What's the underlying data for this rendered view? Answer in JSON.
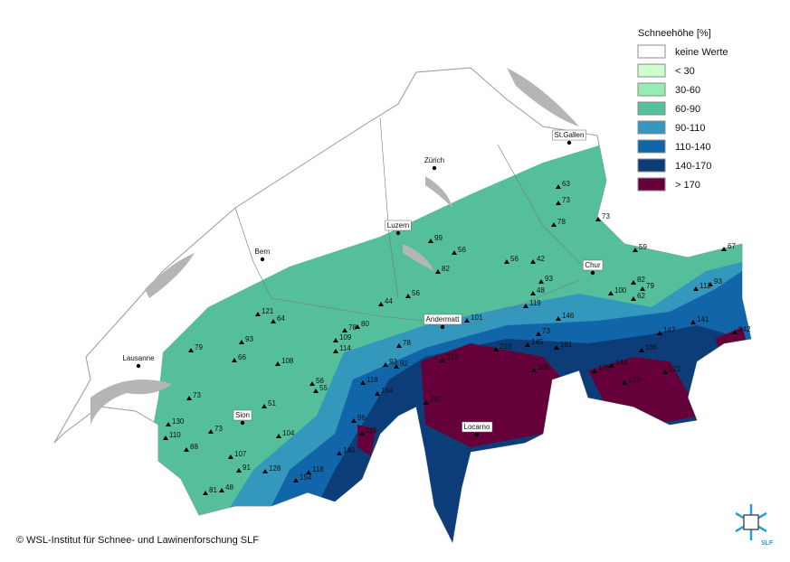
{
  "legend": {
    "title": "Schneehöhe [%]",
    "items": [
      {
        "label": "keine Werte",
        "color": "#ffffff"
      },
      {
        "label": "< 30",
        "color": "#ccffcc"
      },
      {
        "label": "30-60",
        "color": "#99ecb4"
      },
      {
        "label": "60-90",
        "color": "#55bf9c"
      },
      {
        "label": "90-110",
        "color": "#3398bb"
      },
      {
        "label": "110-140",
        "color": "#1166aa"
      },
      {
        "label": "140-170",
        "color": "#0c3d78"
      },
      {
        "label": "> 170",
        "color": "#66003a"
      }
    ]
  },
  "cities": [
    "Zürich",
    "St.Gallen",
    "Luzern",
    "Bern",
    "Chur",
    "Andermatt",
    "Lausanne",
    "Sion",
    "Locarno"
  ],
  "stations": [
    63,
    73,
    78,
    73,
    99,
    56,
    56,
    42,
    59,
    67,
    82,
    93,
    82,
    79,
    100,
    62,
    112,
    93,
    48,
    119,
    44,
    56,
    121,
    64,
    78,
    80,
    101,
    146,
    141,
    242,
    109,
    114,
    93,
    79,
    66,
    108,
    73,
    145,
    147,
    78,
    210,
    161,
    186,
    93,
    92,
    212,
    286,
    176,
    144,
    221,
    56,
    55,
    118,
    223,
    73,
    164,
    51,
    247,
    130,
    96,
    110,
    73,
    104,
    115,
    88,
    107,
    140,
    91,
    128,
    118,
    154,
    81,
    48
  ],
  "copyright": "© WSL-Institut für Schnee- und Lawinenforschung SLF",
  "logo": "SLF"
}
